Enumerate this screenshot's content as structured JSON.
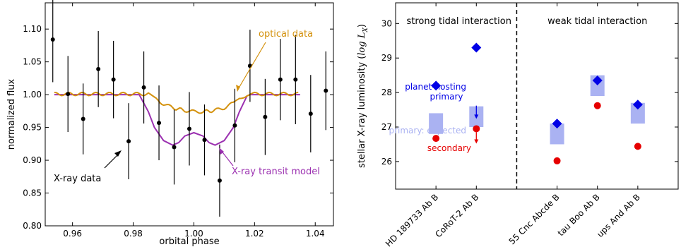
{
  "chart_data": [
    {
      "type": "scatter",
      "xlabel": "orbital phase",
      "ylabel": "normalized flux",
      "xlim": [
        0.951,
        1.046
      ],
      "ylim": [
        0.8,
        1.14
      ],
      "xticks": [
        0.96,
        0.98,
        1.0,
        1.02,
        1.04
      ],
      "xtick_labels": [
        "0.96",
        "0.98",
        "1.00",
        "1.02",
        "1.04"
      ],
      "yticks": [
        0.8,
        0.85,
        0.9,
        0.95,
        1.0,
        1.05,
        1.1
      ],
      "ytick_labels": [
        "0.80",
        "0.85",
        "0.90",
        "0.95",
        "1.00",
        "1.05",
        "1.10"
      ],
      "grid": false,
      "series": [
        {
          "name": "X-ray data",
          "kind": "errorbar",
          "color": "#000000",
          "x": [
            0.9535,
            0.9585,
            0.9635,
            0.9685,
            0.9735,
            0.9785,
            0.9835,
            0.9885,
            0.9935,
            0.9985,
            1.0035,
            1.0085,
            1.0135,
            1.0185,
            1.0235,
            1.0285,
            1.0335,
            1.0385,
            1.0435
          ],
          "y": [
            1.084,
            1.001,
            0.963,
            1.039,
            1.023,
            0.929,
            1.011,
            0.957,
            0.92,
            0.948,
            0.931,
            0.869,
            0.953,
            1.044,
            0.966,
            1.023,
            1.023,
            0.971,
            1.006
          ],
          "yerr": [
            0.065,
            0.058,
            0.054,
            0.058,
            0.059,
            0.058,
            0.055,
            0.057,
            0.057,
            0.056,
            0.054,
            0.055,
            0.056,
            0.055,
            0.058,
            0.062,
            0.068,
            0.059,
            0.06
          ]
        },
        {
          "name": "optical data",
          "kind": "line",
          "color": "#d4920e",
          "x": [
            0.954,
            0.985,
            0.987,
            0.99,
            0.993,
            0.997,
            1.0,
            1.003,
            1.007,
            1.01,
            1.013,
            1.015,
            1.0175,
            1.02,
            1.035
          ],
          "y": [
            1.001,
            1.001,
            0.994,
            0.986,
            0.98,
            0.976,
            0.974,
            0.974,
            0.976,
            0.98,
            0.987,
            0.994,
            1.0,
            1.001,
            1.001
          ]
        },
        {
          "name": "X-ray transit model",
          "kind": "line",
          "color": "#9b30b0",
          "x": [
            0.954,
            0.982,
            0.985,
            0.987,
            0.99,
            0.993,
            0.995,
            0.997,
            1.0,
            1.003,
            1.005,
            1.007,
            1.01,
            1.013,
            1.015,
            1.0175,
            1.0185,
            1.035
          ],
          "y": [
            1.0,
            1.0,
            0.974,
            0.95,
            0.93,
            0.923,
            0.927,
            0.937,
            0.942,
            0.937,
            0.927,
            0.923,
            0.93,
            0.95,
            0.974,
            0.998,
            1.0,
            1.0
          ]
        }
      ],
      "annotations": [
        {
          "text": "optical data",
          "color": "#d4920e"
        },
        {
          "text": "X-ray data",
          "color": "#000000"
        },
        {
          "text": "X-ray transit model",
          "color": "#9b30b0"
        }
      ]
    },
    {
      "type": "scatter",
      "ylabel_prefix": "stellar X-ray luminosity (",
      "ylabel_math": "log L",
      "ylabel_sub": "X",
      "ylabel_suffix": ")",
      "ylim": [
        25.2,
        30.6
      ],
      "yticks": [
        26,
        27,
        28,
        29,
        30
      ],
      "ytick_labels": [
        "26",
        "27",
        "28",
        "29",
        "30"
      ],
      "categories": [
        "HD 189733 Ab B",
        "CoRoT-2 Ab B",
        "55 Cnc Abcde B",
        "tau Boo Ab B",
        "ups And Ab B"
      ],
      "category_positions": [
        1,
        2,
        4,
        5,
        6
      ],
      "xlim": [
        0,
        7
      ],
      "divider_at": 3,
      "group_labels": [
        "strong tidal interaction",
        "weak tidal interaction"
      ],
      "planet_hosting_primary": [
        28.2,
        29.3,
        27.1,
        28.35,
        27.65
      ],
      "primary_expected_range": [
        [
          26.8,
          27.4
        ],
        [
          27.0,
          27.6
        ],
        [
          26.5,
          27.1
        ],
        [
          27.9,
          28.5
        ],
        [
          27.1,
          27.7
        ]
      ],
      "secondary": [
        26.67,
        26.95,
        26.02,
        27.62,
        26.44
      ],
      "secondary_upper_limit": [
        false,
        true,
        false,
        false,
        false
      ],
      "primary_upper_limit": [
        false,
        true,
        false,
        false,
        false
      ],
      "legend_labels": {
        "primary_line1": "planet-hosting",
        "primary_line2": "primary",
        "expected": "primary: expected",
        "secondary": "secondary"
      },
      "colors": {
        "primary": "#0000e6",
        "expected": "#aab2f2",
        "secondary": "#e60000",
        "arrow_primary": "#0000e6",
        "arrow_secondary": "#e60000"
      }
    }
  ]
}
